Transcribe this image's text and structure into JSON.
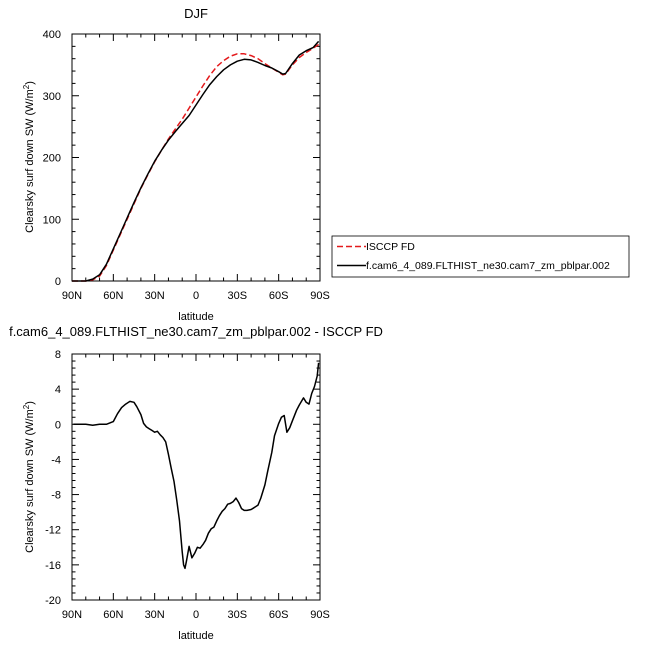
{
  "chart_data": [
    {
      "type": "line",
      "title": "DJF",
      "xlabel": "latitude",
      "ylabel": "Clearsky surf down SW (W/m",
      "ylabel_sup": "2",
      "ylabel_close": ")",
      "xlim": [
        -90,
        90
      ],
      "ylim": [
        0,
        400
      ],
      "xticks": [
        -90,
        -60,
        -30,
        0,
        30,
        60,
        90
      ],
      "xtick_labels": [
        "90N",
        "60N",
        "30N",
        "0",
        "30S",
        "60S",
        "90S"
      ],
      "yticks": [
        0,
        100,
        200,
        300,
        400
      ],
      "ytick_labels": [
        "0",
        "100",
        "200",
        "300",
        "400"
      ],
      "grid": false,
      "legend_position": "right",
      "series": [
        {
          "name": "ISCCP FD",
          "color": "#e41a1c",
          "dash": "dashed",
          "x": [
            -90,
            -85,
            -80,
            -75,
            -70,
            -65,
            -60,
            -55,
            -50,
            -45,
            -40,
            -35,
            -30,
            -25,
            -20,
            -15,
            -10,
            -5,
            0,
            5,
            10,
            15,
            20,
            25,
            30,
            35,
            40,
            45,
            50,
            55,
            60,
            63,
            65,
            70,
            75,
            80,
            85,
            89
          ],
          "y": [
            0,
            0,
            0,
            2,
            8,
            25,
            50,
            75,
            100,
            125,
            150,
            172,
            193,
            212,
            230,
            246,
            262,
            280,
            298,
            316,
            333,
            347,
            357,
            364,
            368,
            368,
            365,
            360,
            352,
            345,
            338,
            334,
            335,
            350,
            362,
            370,
            377,
            383
          ]
        },
        {
          "name": "f.cam6_4_089.FLTHIST_ne30.cam7_zm_pblpar.002",
          "color": "#000000",
          "dash": "solid",
          "x": [
            -90,
            -85,
            -80,
            -75,
            -70,
            -65,
            -60,
            -55,
            -50,
            -45,
            -40,
            -35,
            -30,
            -25,
            -20,
            -15,
            -10,
            -5,
            0,
            5,
            10,
            15,
            20,
            25,
            30,
            35,
            40,
            45,
            50,
            55,
            60,
            63,
            65,
            70,
            75,
            80,
            85,
            89
          ],
          "y": [
            0,
            0,
            0,
            3,
            10,
            27,
            52,
            77,
            102,
            127,
            151,
            173,
            194,
            212,
            228,
            242,
            255,
            268,
            285,
            302,
            318,
            331,
            342,
            350,
            356,
            359,
            358,
            354,
            349,
            345,
            339,
            335,
            336,
            352,
            366,
            373,
            378,
            388
          ]
        }
      ]
    },
    {
      "type": "line",
      "title": "f.cam6_4_089.FLTHIST_ne30.cam7_zm_pblpar.002 - ISCCP FD",
      "xlabel": "latitude",
      "ylabel": "Clearsky surf down SW (W/m",
      "ylabel_sup": "2",
      "ylabel_close": ")",
      "xlim": [
        -90,
        90
      ],
      "ylim": [
        -20,
        8
      ],
      "xticks": [
        -90,
        -60,
        -30,
        0,
        30,
        60,
        90
      ],
      "xtick_labels": [
        "90N",
        "60N",
        "30N",
        "0",
        "30S",
        "60S",
        "90S"
      ],
      "yticks": [
        -20,
        -16,
        -12,
        -8,
        -4,
        0,
        4,
        8
      ],
      "ytick_labels": [
        "-20",
        "-16",
        "-12",
        "-8",
        "-4",
        "0",
        "4",
        "8"
      ],
      "grid": false,
      "series": [
        {
          "color": "#000000",
          "x": [
            -89,
            -85,
            -80,
            -75,
            -70,
            -65,
            -60,
            -57,
            -54,
            -51,
            -48,
            -45,
            -43,
            -40,
            -38,
            -36,
            -34,
            -32,
            -30,
            -28,
            -26,
            -24,
            -22,
            -20,
            -18,
            -16,
            -14,
            -12,
            -10,
            -9,
            -8,
            -7,
            -5,
            -3,
            -1,
            1,
            3,
            5,
            7,
            9,
            11,
            13,
            15,
            17,
            19,
            21,
            23,
            25,
            27,
            29,
            31,
            33,
            35,
            37,
            40,
            42,
            45,
            47,
            50,
            52,
            55,
            57,
            60,
            62,
            64,
            66,
            68,
            70,
            73,
            75,
            78,
            80,
            82,
            84,
            86,
            88,
            89
          ],
          "y": [
            0,
            0,
            0,
            -0.1,
            0,
            0,
            0.3,
            1.2,
            1.9,
            2.3,
            2.6,
            2.5,
            2,
            1.1,
            0.1,
            -0.3,
            -0.5,
            -0.7,
            -0.9,
            -0.8,
            -1.2,
            -1.5,
            -2.0,
            -3.4,
            -5.0,
            -6.5,
            -8.6,
            -11,
            -14.5,
            -16.0,
            -16.4,
            -15.6,
            -13.9,
            -15.2,
            -14.7,
            -14.0,
            -14.1,
            -13.7,
            -13.2,
            -12.4,
            -11.9,
            -11.7,
            -11.0,
            -10.4,
            -9.9,
            -9.6,
            -9.1,
            -9.0,
            -8.8,
            -8.4,
            -8.9,
            -9.6,
            -9.8,
            -9.8,
            -9.7,
            -9.5,
            -9.2,
            -8.4,
            -6.9,
            -5.4,
            -3.2,
            -1.3,
            0.1,
            0.8,
            1.0,
            -0.9,
            -0.4,
            0.4,
            1.6,
            2.2,
            3.0,
            2.5,
            2.3,
            3.5,
            4.3,
            5.5,
            7.0
          ]
        }
      ]
    }
  ]
}
